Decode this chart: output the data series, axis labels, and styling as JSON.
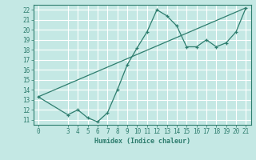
{
  "xlabel": "Humidex (Indice chaleur)",
  "background_color": "#c4e8e4",
  "grid_color": "#ffffff",
  "line_color": "#2e7d6e",
  "line1_x": [
    0,
    3,
    4,
    5,
    6,
    7,
    8,
    9,
    10,
    11,
    12,
    13,
    14,
    15,
    16,
    17,
    18,
    19,
    20,
    21
  ],
  "line1_y": [
    13.3,
    11.5,
    12.0,
    11.2,
    10.8,
    11.7,
    14.0,
    16.5,
    18.2,
    19.8,
    22.0,
    21.4,
    20.4,
    18.3,
    18.3,
    19.0,
    18.3,
    18.7,
    19.8,
    22.2
  ],
  "line2_x": [
    0,
    21
  ],
  "line2_y": [
    13.3,
    22.2
  ],
  "xlim": [
    -0.5,
    21.5
  ],
  "ylim": [
    10.5,
    22.5
  ],
  "xticks": [
    0,
    3,
    4,
    5,
    6,
    7,
    8,
    9,
    10,
    11,
    12,
    13,
    14,
    15,
    16,
    17,
    18,
    19,
    20,
    21
  ],
  "yticks": [
    11,
    12,
    13,
    14,
    15,
    16,
    17,
    18,
    19,
    20,
    21,
    22
  ]
}
